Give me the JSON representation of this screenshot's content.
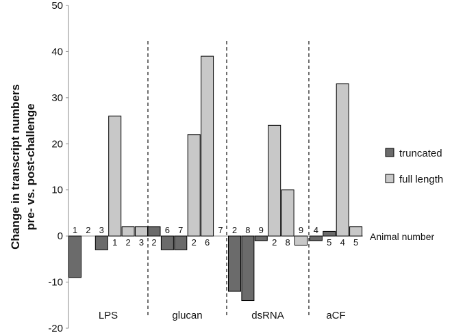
{
  "chart_data": {
    "type": "bar",
    "ylabel_lines": [
      "Change in transcript numbers",
      "pre- vs. post-challenge"
    ],
    "ylim": [
      -20,
      50
    ],
    "yticks": [
      "-20",
      "-10",
      "0",
      "10",
      "20",
      "30",
      "40",
      "50"
    ],
    "ytick_values": [
      -20,
      -10,
      0,
      10,
      20,
      30,
      40,
      50
    ],
    "annotation": "Animal number",
    "legend": {
      "placement": "right",
      "entries": [
        "truncated",
        "full length"
      ]
    },
    "colors": {
      "truncated": "#6b6b6b",
      "full length": "#c8c8c8"
    },
    "groups": [
      {
        "name": "LPS",
        "bars": [
          {
            "series": "truncated",
            "animal": "1",
            "value": -9
          },
          {
            "series": "truncated",
            "animal": "2",
            "value": 0
          },
          {
            "series": "truncated",
            "animal": "3",
            "value": -3
          },
          {
            "series": "full length",
            "animal": "1",
            "value": 26
          },
          {
            "series": "full length",
            "animal": "2",
            "value": 2
          },
          {
            "series": "full length",
            "animal": "3",
            "value": 2
          }
        ]
      },
      {
        "name": "glucan",
        "bars": [
          {
            "series": "truncated",
            "animal": "2",
            "value": 2
          },
          {
            "series": "truncated",
            "animal": "6",
            "value": -3
          },
          {
            "series": "truncated",
            "animal": "7",
            "value": -3
          },
          {
            "series": "full length",
            "animal": "2",
            "value": 22
          },
          {
            "series": "full length",
            "animal": "6",
            "value": 39
          },
          {
            "series": "full length",
            "animal": "7",
            "value": 0
          }
        ]
      },
      {
        "name": "dsRNA",
        "bars": [
          {
            "series": "truncated",
            "animal": "2",
            "value": -12
          },
          {
            "series": "truncated",
            "animal": "8",
            "value": -14
          },
          {
            "series": "truncated",
            "animal": "9",
            "value": -1
          },
          {
            "series": "full length",
            "animal": "2",
            "value": 24
          },
          {
            "series": "full length",
            "animal": "8",
            "value": 10
          },
          {
            "series": "full length",
            "animal": "9",
            "value": -2
          }
        ]
      },
      {
        "name": "aCF",
        "bars": [
          {
            "series": "truncated",
            "animal": "4",
            "value": -1
          },
          {
            "series": "truncated",
            "animal": "5",
            "value": 1
          },
          {
            "series": "full length",
            "animal": "4",
            "value": 33
          },
          {
            "series": "full length",
            "animal": "5",
            "value": 2
          }
        ]
      }
    ]
  }
}
